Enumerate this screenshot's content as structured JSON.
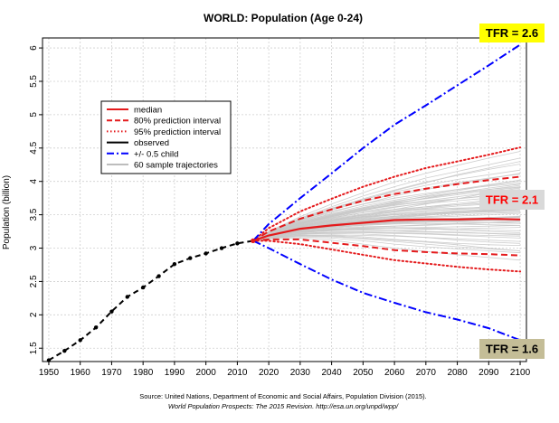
{
  "chart_data": {
    "type": "line",
    "title": "WORLD: Population (Age 0-24)",
    "ylabel": "Population (billion)",
    "xlabel": "",
    "xlim": [
      1948,
      2102
    ],
    "ylim": [
      1.3,
      6.15
    ],
    "x_ticks": [
      "1950",
      "1960",
      "1970",
      "1980",
      "1990",
      "2000",
      "2010",
      "2020",
      "2030",
      "2040",
      "2050",
      "2060",
      "2070",
      "2080",
      "2090",
      "2100"
    ],
    "y_ticks": [
      "1.5",
      "2",
      "2.5",
      "3",
      "3.5",
      "4",
      "4.5",
      "5",
      "5.5",
      "6"
    ],
    "grid": true,
    "legend": {
      "position": "top-left",
      "entries": [
        {
          "label": "median",
          "color": "#e41a1c",
          "style": "solid"
        },
        {
          "label": "80% prediction interval",
          "color": "#e41a1c",
          "style": "dashed"
        },
        {
          "label": "95% prediction interval",
          "color": "#e41a1c",
          "style": "dotted"
        },
        {
          "label": "observed",
          "color": "#000000",
          "style": "solid"
        },
        {
          "label": "+/- 0.5 child",
          "color": "#0000ff",
          "style": "dashdot"
        },
        {
          "label": "60 sample trajectories",
          "color": "#bdbdbd",
          "style": "solid"
        }
      ]
    },
    "series": [
      {
        "name": "observed",
        "color": "#000000",
        "x": [
          1950,
          1955,
          1960,
          1965,
          1970,
          1975,
          1980,
          1985,
          1990,
          1995,
          2000,
          2005,
          2010,
          2015
        ],
        "values": [
          1.32,
          1.46,
          1.62,
          1.81,
          2.05,
          2.27,
          2.41,
          2.58,
          2.76,
          2.85,
          2.92,
          3.0,
          3.07,
          3.11
        ]
      },
      {
        "name": "median",
        "color": "#e41a1c",
        "x": [
          2015,
          2020,
          2030,
          2040,
          2050,
          2060,
          2070,
          2080,
          2090,
          2100
        ],
        "values": [
          3.11,
          3.19,
          3.29,
          3.34,
          3.38,
          3.42,
          3.43,
          3.43,
          3.44,
          3.43
        ]
      },
      {
        "name": "80% prediction interval",
        "color": "#e41a1c",
        "x": [
          2015,
          2020,
          2030,
          2040,
          2050,
          2060,
          2070,
          2080,
          2090,
          2100
        ],
        "lower": [
          3.11,
          3.13,
          3.13,
          3.08,
          3.03,
          2.97,
          2.94,
          2.92,
          2.91,
          2.89
        ],
        "upper": [
          3.11,
          3.25,
          3.44,
          3.58,
          3.71,
          3.81,
          3.89,
          3.96,
          4.02,
          4.07
        ]
      },
      {
        "name": "95% prediction interval",
        "color": "#e41a1c",
        "x": [
          2015,
          2020,
          2030,
          2040,
          2050,
          2060,
          2070,
          2080,
          2090,
          2100
        ],
        "lower": [
          3.11,
          3.11,
          3.06,
          2.98,
          2.9,
          2.82,
          2.77,
          2.72,
          2.68,
          2.65
        ],
        "upper": [
          3.11,
          3.3,
          3.55,
          3.74,
          3.92,
          4.07,
          4.2,
          4.3,
          4.4,
          4.51
        ]
      },
      {
        "name": "+/- 0.5 child",
        "color": "#0000ff",
        "x": [
          2015,
          2020,
          2030,
          2040,
          2050,
          2060,
          2070,
          2080,
          2090,
          2100
        ],
        "lower": [
          3.11,
          3.0,
          2.76,
          2.53,
          2.33,
          2.18,
          2.04,
          1.93,
          1.8,
          1.62
        ],
        "upper": [
          3.11,
          3.36,
          3.75,
          4.12,
          4.5,
          4.85,
          5.14,
          5.44,
          5.74,
          6.05
        ]
      },
      {
        "name": "60 sample trajectories",
        "color": "#c8c8c8",
        "x": [
          2015,
          2020,
          2030,
          2040,
          2050,
          2060,
          2070,
          2080,
          2090,
          2100
        ],
        "trajectories": [
          [
            3.11,
            3.2,
            3.33,
            3.42,
            3.5,
            3.58,
            3.66,
            3.74,
            3.83,
            3.9
          ],
          [
            3.11,
            3.17,
            3.24,
            3.27,
            3.28,
            3.27,
            3.25,
            3.24,
            3.22,
            3.2
          ],
          [
            3.11,
            3.22,
            3.39,
            3.52,
            3.63,
            3.72,
            3.8,
            3.88,
            3.95,
            4.02
          ],
          [
            3.11,
            3.15,
            3.18,
            3.17,
            3.14,
            3.1,
            3.06,
            3.02,
            2.99,
            2.96
          ],
          [
            3.11,
            3.19,
            3.3,
            3.37,
            3.42,
            3.47,
            3.5,
            3.52,
            3.55,
            3.57
          ],
          [
            3.11,
            3.23,
            3.42,
            3.58,
            3.72,
            3.86,
            3.98,
            4.1,
            4.2,
            4.3
          ],
          [
            3.11,
            3.18,
            3.27,
            3.31,
            3.34,
            3.36,
            3.37,
            3.36,
            3.35,
            3.34
          ],
          [
            3.11,
            3.21,
            3.35,
            3.44,
            3.51,
            3.55,
            3.58,
            3.6,
            3.61,
            3.62
          ],
          [
            3.11,
            3.16,
            3.22,
            3.24,
            3.24,
            3.23,
            3.22,
            3.2,
            3.19,
            3.18
          ],
          [
            3.11,
            3.24,
            3.45,
            3.62,
            3.78,
            3.92,
            4.05,
            4.15,
            4.25,
            4.35
          ],
          [
            3.11,
            3.2,
            3.31,
            3.39,
            3.45,
            3.5,
            3.53,
            3.56,
            3.58,
            3.6
          ],
          [
            3.11,
            3.14,
            3.15,
            3.12,
            3.06,
            3.0,
            2.95,
            2.9,
            2.86,
            2.82
          ],
          [
            3.11,
            3.22,
            3.37,
            3.48,
            3.57,
            3.64,
            3.7,
            3.74,
            3.78,
            3.81
          ],
          [
            3.11,
            3.18,
            3.28,
            3.34,
            3.39,
            3.43,
            3.46,
            3.48,
            3.5,
            3.52
          ],
          [
            3.11,
            3.17,
            3.25,
            3.29,
            3.3,
            3.31,
            3.3,
            3.29,
            3.27,
            3.26
          ],
          [
            3.11,
            3.21,
            3.36,
            3.47,
            3.56,
            3.66,
            3.75,
            3.83,
            3.9,
            3.96
          ],
          [
            3.11,
            3.19,
            3.29,
            3.35,
            3.4,
            3.42,
            3.44,
            3.45,
            3.46,
            3.46
          ],
          [
            3.11,
            3.16,
            3.21,
            3.22,
            3.21,
            3.19,
            3.16,
            3.12,
            3.09,
            3.07
          ],
          [
            3.11,
            3.23,
            3.4,
            3.54,
            3.66,
            3.78,
            3.88,
            3.96,
            4.04,
            4.12
          ],
          [
            3.11,
            3.2,
            3.32,
            3.4,
            3.47,
            3.52,
            3.56,
            3.58,
            3.6,
            3.61
          ],
          [
            3.11,
            3.18,
            3.26,
            3.3,
            3.32,
            3.33,
            3.34,
            3.36,
            3.38,
            3.41
          ],
          [
            3.11,
            3.15,
            3.2,
            3.19,
            3.17,
            3.13,
            3.1,
            3.07,
            3.05,
            3.04
          ],
          [
            3.11,
            3.22,
            3.38,
            3.5,
            3.6,
            3.68,
            3.74,
            3.8,
            3.86,
            3.91
          ],
          [
            3.11,
            3.19,
            3.3,
            3.36,
            3.41,
            3.45,
            3.49,
            3.53,
            3.57,
            3.6
          ],
          [
            3.11,
            3.21,
            3.34,
            3.42,
            3.47,
            3.5,
            3.52,
            3.53,
            3.54,
            3.55
          ],
          [
            3.11,
            3.17,
            3.23,
            3.26,
            3.27,
            3.27,
            3.28,
            3.29,
            3.3,
            3.31
          ],
          [
            3.11,
            3.24,
            3.43,
            3.59,
            3.74,
            3.87,
            3.99,
            4.09,
            4.18,
            4.26
          ],
          [
            3.11,
            3.18,
            3.27,
            3.32,
            3.35,
            3.38,
            3.4,
            3.41,
            3.42,
            3.43
          ],
          [
            3.11,
            3.2,
            3.33,
            3.42,
            3.49,
            3.55,
            3.6,
            3.65,
            3.7,
            3.74
          ],
          [
            3.11,
            3.16,
            3.19,
            3.18,
            3.15,
            3.12,
            3.09,
            3.05,
            3.0,
            2.96
          ],
          [
            3.11,
            3.22,
            3.36,
            3.46,
            3.53,
            3.58,
            3.62,
            3.65,
            3.67,
            3.69
          ],
          [
            3.11,
            3.19,
            3.28,
            3.33,
            3.36,
            3.38,
            3.39,
            3.39,
            3.38,
            3.37
          ],
          [
            3.11,
            3.21,
            3.37,
            3.49,
            3.59,
            3.69,
            3.78,
            3.86,
            3.94,
            4.0
          ],
          [
            3.11,
            3.17,
            3.24,
            3.27,
            3.29,
            3.3,
            3.31,
            3.32,
            3.33,
            3.34
          ],
          [
            3.11,
            3.23,
            3.41,
            3.55,
            3.66,
            3.75,
            3.82,
            3.88,
            3.93,
            3.97
          ],
          [
            3.11,
            3.18,
            3.28,
            3.35,
            3.4,
            3.44,
            3.47,
            3.5,
            3.52,
            3.54
          ],
          [
            3.11,
            3.15,
            3.19,
            3.2,
            3.19,
            3.18,
            3.16,
            3.14,
            3.12,
            3.1
          ],
          [
            3.11,
            3.2,
            3.32,
            3.41,
            3.48,
            3.54,
            3.59,
            3.63,
            3.66,
            3.68
          ],
          [
            3.11,
            3.22,
            3.39,
            3.51,
            3.61,
            3.7,
            3.77,
            3.83,
            3.88,
            3.92
          ],
          [
            3.11,
            3.19,
            3.29,
            3.34,
            3.37,
            3.39,
            3.41,
            3.42,
            3.43,
            3.44
          ],
          [
            3.11,
            3.16,
            3.22,
            3.24,
            3.25,
            3.25,
            3.24,
            3.23,
            3.22,
            3.21
          ],
          [
            3.11,
            3.21,
            3.35,
            3.45,
            3.53,
            3.61,
            3.68,
            3.74,
            3.79,
            3.84
          ],
          [
            3.11,
            3.18,
            3.27,
            3.32,
            3.36,
            3.39,
            3.41,
            3.43,
            3.45,
            3.47
          ],
          [
            3.11,
            3.24,
            3.44,
            3.6,
            3.73,
            3.84,
            3.94,
            4.03,
            4.1,
            4.17
          ],
          [
            3.11,
            3.2,
            3.31,
            3.38,
            3.44,
            3.48,
            3.51,
            3.54,
            3.56,
            3.58
          ],
          [
            3.11,
            3.17,
            3.25,
            3.28,
            3.3,
            3.3,
            3.29,
            3.27,
            3.25,
            3.23
          ],
          [
            3.11,
            3.22,
            3.38,
            3.49,
            3.58,
            3.65,
            3.71,
            3.77,
            3.83,
            3.88
          ],
          [
            3.11,
            3.19,
            3.3,
            3.37,
            3.43,
            3.48,
            3.52,
            3.55,
            3.58,
            3.6
          ],
          [
            3.11,
            3.15,
            3.17,
            3.15,
            3.11,
            3.06,
            3.02,
            2.99,
            2.96,
            2.93
          ],
          [
            3.11,
            3.21,
            3.34,
            3.43,
            3.5,
            3.56,
            3.62,
            3.67,
            3.72,
            3.76
          ],
          [
            3.11,
            3.18,
            3.26,
            3.31,
            3.34,
            3.37,
            3.39,
            3.4,
            3.41,
            3.42
          ],
          [
            3.11,
            3.23,
            3.42,
            3.57,
            3.7,
            3.81,
            3.9,
            3.98,
            4.05,
            4.11
          ],
          [
            3.11,
            3.2,
            3.32,
            3.4,
            3.46,
            3.51,
            3.55,
            3.59,
            3.62,
            3.65
          ],
          [
            3.11,
            3.16,
            3.21,
            3.23,
            3.23,
            3.22,
            3.21,
            3.19,
            3.17,
            3.15
          ],
          [
            3.11,
            3.22,
            3.37,
            3.47,
            3.55,
            3.62,
            3.67,
            3.71,
            3.75,
            3.78
          ],
          [
            3.11,
            3.19,
            3.29,
            3.36,
            3.41,
            3.46,
            3.5,
            3.53,
            3.56,
            3.58
          ],
          [
            3.11,
            3.21,
            3.36,
            3.48,
            3.58,
            3.67,
            3.75,
            3.82,
            3.88,
            3.94
          ],
          [
            3.11,
            3.17,
            3.24,
            3.28,
            3.31,
            3.33,
            3.35,
            3.37,
            3.38,
            3.39
          ],
          [
            3.11,
            3.25,
            3.47,
            3.66,
            3.83,
            3.99,
            4.12,
            4.24,
            4.35,
            4.45
          ],
          [
            3.11,
            3.18,
            3.28,
            3.33,
            3.37,
            3.4,
            3.42,
            3.44,
            3.46,
            3.48
          ]
        ]
      }
    ],
    "annotations": [
      {
        "label": "TFR = 2.6",
        "background": "#ffff00"
      },
      {
        "label": "TFR = 2.1",
        "background": "#d9d9d9",
        "text_color": "#ff0000"
      },
      {
        "label": "TFR = 1.6",
        "background": "#c4bd97"
      }
    ],
    "source": {
      "line1": "Source: United Nations, Department of Economic and Social Affairs, Population Division (2015).",
      "line2": "World Population Prospects: The 2015 Revision. http://esa.un.org/unpd/wpp/"
    }
  }
}
